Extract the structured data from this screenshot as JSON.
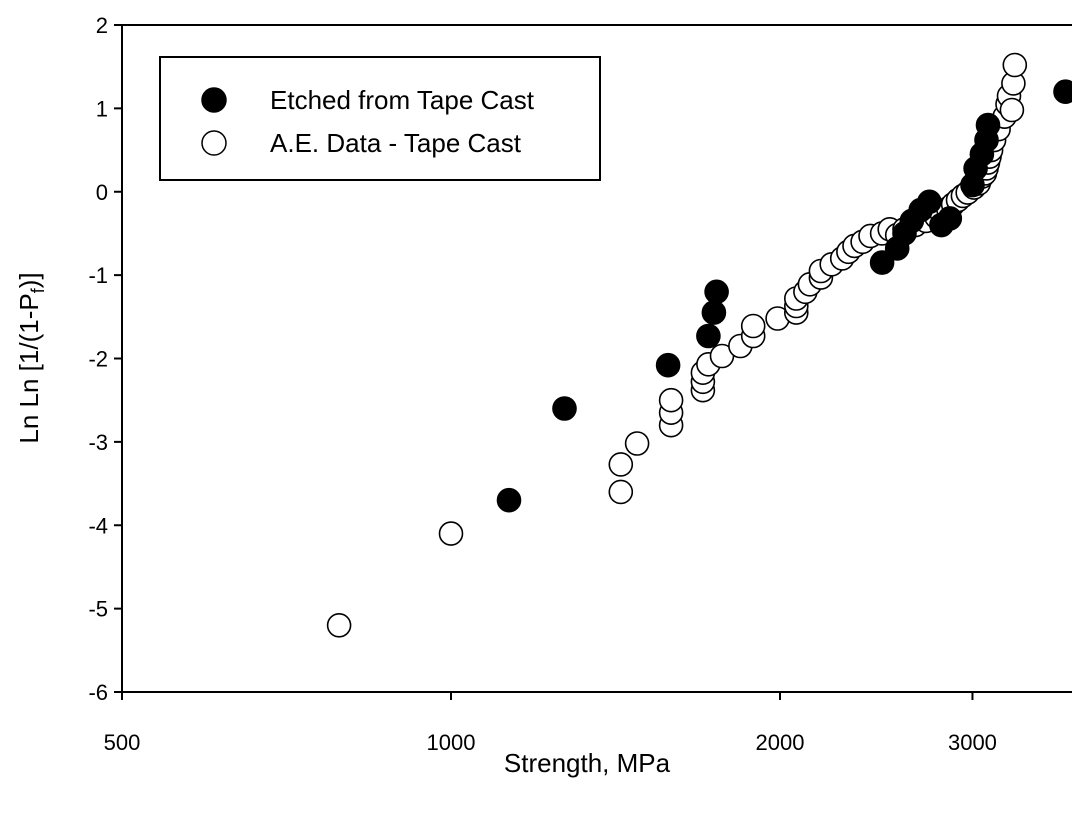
{
  "chart_data": {
    "type": "scatter",
    "title": "",
    "xlabel": "Strength, MPa",
    "ylabel_prefix": "Ln Ln [1/(1-P",
    "ylabel_sub": "f",
    "ylabel_suffix": ")]",
    "x_scale": "log",
    "xlim": [
      500,
      3700
    ],
    "ylim": [
      -6,
      2
    ],
    "x_ticks": [
      500,
      1000,
      2000,
      3000
    ],
    "y_ticks": [
      -6,
      -5,
      -4,
      -3,
      -2,
      -1,
      0,
      1,
      2
    ],
    "grid": false,
    "legend_position": "top-left",
    "series": [
      {
        "name": "Etched from Tape Cast",
        "marker": "filled-circle",
        "color": "#000000",
        "points": [
          [
            1130,
            -3.7
          ],
          [
            1270,
            -2.6
          ],
          [
            1580,
            -2.08
          ],
          [
            1720,
            -1.73
          ],
          [
            1740,
            -1.45
          ],
          [
            1750,
            -1.2
          ],
          [
            2480,
            -0.85
          ],
          [
            2560,
            -0.68
          ],
          [
            2600,
            -0.5
          ],
          [
            2640,
            -0.35
          ],
          [
            2690,
            -0.22
          ],
          [
            2740,
            -0.12
          ],
          [
            2810,
            -0.4
          ],
          [
            2860,
            -0.32
          ],
          [
            3000,
            0.08
          ],
          [
            3020,
            0.28
          ],
          [
            3060,
            0.45
          ],
          [
            3090,
            0.62
          ],
          [
            3100,
            0.8
          ],
          [
            3650,
            1.2
          ]
        ]
      },
      {
        "name": "A.E. Data - Tape Cast",
        "marker": "open-circle",
        "color": "#000000",
        "points": [
          [
            790,
            -5.2
          ],
          [
            1000,
            -4.1
          ],
          [
            1430,
            -3.6
          ],
          [
            1430,
            -3.27
          ],
          [
            1480,
            -3.02
          ],
          [
            1590,
            -2.8
          ],
          [
            1590,
            -2.65
          ],
          [
            1590,
            -2.5
          ],
          [
            1700,
            -2.38
          ],
          [
            1700,
            -2.28
          ],
          [
            1700,
            -2.17
          ],
          [
            1720,
            -2.07
          ],
          [
            1770,
            -1.97
          ],
          [
            1840,
            -1.85
          ],
          [
            1890,
            -1.73
          ],
          [
            1890,
            -1.61
          ],
          [
            1990,
            -1.52
          ],
          [
            2070,
            -1.45
          ],
          [
            2070,
            -1.37
          ],
          [
            2070,
            -1.28
          ],
          [
            2110,
            -1.2
          ],
          [
            2130,
            -1.11
          ],
          [
            2180,
            -1.03
          ],
          [
            2180,
            -0.95
          ],
          [
            2230,
            -0.87
          ],
          [
            2280,
            -0.8
          ],
          [
            2310,
            -0.72
          ],
          [
            2340,
            -0.65
          ],
          [
            2380,
            -0.6
          ],
          [
            2420,
            -0.53
          ],
          [
            2480,
            -0.5
          ],
          [
            2520,
            -0.45
          ],
          [
            2560,
            -0.52
          ],
          [
            2600,
            -0.45
          ],
          [
            2660,
            -0.4
          ],
          [
            2720,
            -0.35
          ],
          [
            2780,
            -0.3
          ],
          [
            2810,
            -0.25
          ],
          [
            2850,
            -0.2
          ],
          [
            2880,
            -0.15
          ],
          [
            2910,
            -0.1
          ],
          [
            2940,
            -0.05
          ],
          [
            2970,
            -0.01
          ],
          [
            3010,
            0.05
          ],
          [
            3040,
            0.1
          ],
          [
            3060,
            0.18
          ],
          [
            3080,
            0.22
          ],
          [
            3090,
            0.28
          ],
          [
            3100,
            0.35
          ],
          [
            3110,
            0.42
          ],
          [
            3120,
            0.5
          ],
          [
            3140,
            0.62
          ],
          [
            3170,
            0.75
          ],
          [
            3210,
            0.9
          ],
          [
            3230,
            1.05
          ],
          [
            3240,
            1.15
          ],
          [
            3260,
            0.98
          ],
          [
            3270,
            1.3
          ],
          [
            3280,
            1.52
          ]
        ]
      }
    ]
  }
}
